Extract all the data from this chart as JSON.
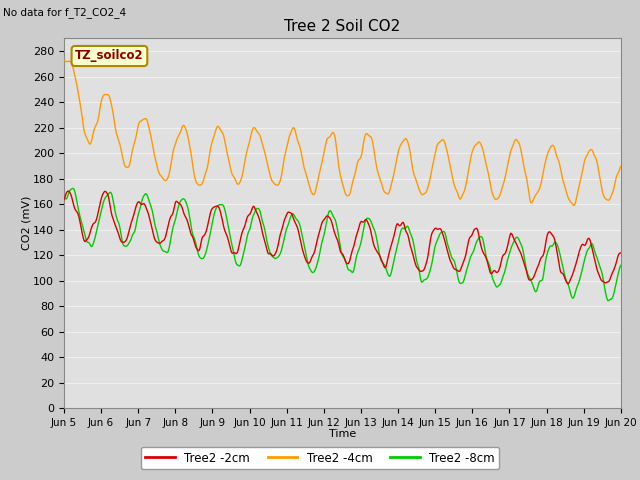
{
  "title": "Tree 2 Soil CO2",
  "xlabel": "Time",
  "ylabel": "CO2 (mV)",
  "annotation_nodata": "No data for f_T2_CO2_4",
  "annotation_tz": "TZ_soilco2",
  "ylim": [
    0,
    290
  ],
  "yticks": [
    0,
    20,
    40,
    60,
    80,
    100,
    120,
    140,
    160,
    180,
    200,
    220,
    240,
    260,
    280
  ],
  "xtick_labels": [
    "Jun 5",
    "Jun 6",
    "Jun 7",
    "Jun 8",
    "Jun 9",
    "Jun 10",
    "Jun 11",
    "Jun 12",
    "Jun 13",
    "Jun 14",
    "Jun 15",
    "Jun 16",
    "Jun 17",
    "Jun 18",
    "Jun 19",
    "Jun 20"
  ],
  "legend": [
    {
      "label": "Tree2 -2cm",
      "color": "#dd0000"
    },
    {
      "label": "Tree2 -4cm",
      "color": "#ff9900"
    },
    {
      "label": "Tree2 -8cm",
      "color": "#00cc00"
    }
  ],
  "bg_color": "#cccccc",
  "plot_bg": "#e0e0e0",
  "grid_color": "#f0f0f0",
  "line_width": 1.0,
  "figsize": [
    6.4,
    4.8
  ],
  "dpi": 100
}
